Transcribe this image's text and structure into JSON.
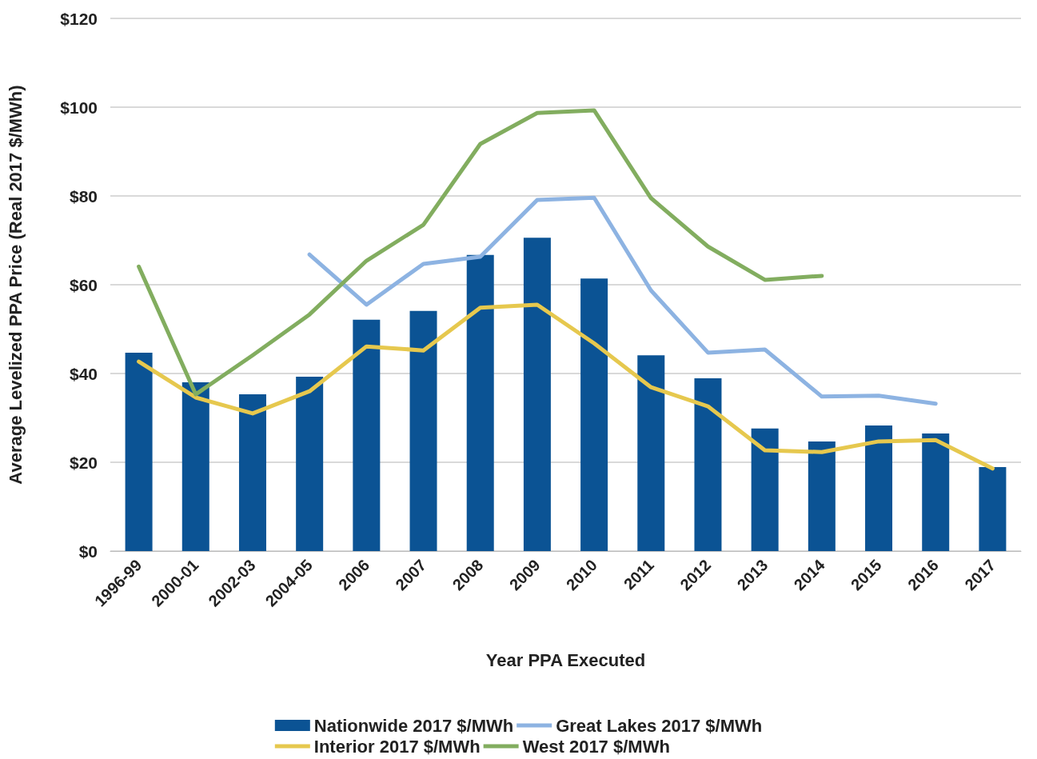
{
  "chart_data": {
    "type": "bar",
    "xlabel": "Year PPA Executed",
    "ylabel": "Average Levelized PPA Price (Real 2017 $/MWh)",
    "categories": [
      "1996-99",
      "2000-01",
      "2002-03",
      "2004-05",
      "2006",
      "2007",
      "2008",
      "2009",
      "2010",
      "2011",
      "2012",
      "2013",
      "2014",
      "2015",
      "2016",
      "2017"
    ],
    "series": [
      {
        "name": "Nationwide 2017 $/MWh",
        "color": "#0b5394",
        "values": [
          44.7,
          38,
          35.3,
          39.3,
          52.1,
          54.1,
          66.7,
          70.6,
          61.4,
          44.1,
          38.9,
          27.6,
          24.7,
          28.3,
          26.5,
          18.9
        ]
      },
      {
        "name": "Great Lakes 2017 $/MWh",
        "type": "line",
        "color": "#8db3e2",
        "values": [
          null,
          null,
          null,
          66.8,
          55.5,
          64.7,
          66.3,
          79.1,
          79.6,
          58.7,
          44.7,
          45.4,
          34.8,
          35,
          33.2,
          null
        ]
      },
      {
        "name": "Interior 2017 $/MWh",
        "type": "line",
        "color": "#e6c84e",
        "values": [
          42.7,
          34.6,
          31,
          36,
          46.1,
          45.2,
          54.8,
          55.5,
          46.8,
          36.9,
          32.6,
          22.7,
          22.3,
          24.7,
          25,
          18.6
        ]
      },
      {
        "name": "West 2017 $/MWh",
        "type": "line",
        "color": "#82ad5f",
        "values": [
          64.1,
          35.3,
          44.1,
          53.3,
          65.4,
          73.5,
          91.7,
          98.7,
          99.3,
          79.5,
          68.6,
          61.1,
          62,
          null,
          null,
          null
        ]
      }
    ],
    "ylim": [
      0,
      120
    ],
    "yticks": [
      {
        "value": 0,
        "label": "$0"
      },
      {
        "value": 20,
        "label": "$20"
      },
      {
        "value": 40,
        "label": "$40"
      },
      {
        "value": 60,
        "label": "$60"
      },
      {
        "value": 80,
        "label": "$80"
      },
      {
        "value": 100,
        "label": "$100"
      },
      {
        "value": 120,
        "label": "$120"
      }
    ],
    "grid": "y",
    "legend": "bottom",
    "marker": "none",
    "line_style": "solid"
  }
}
